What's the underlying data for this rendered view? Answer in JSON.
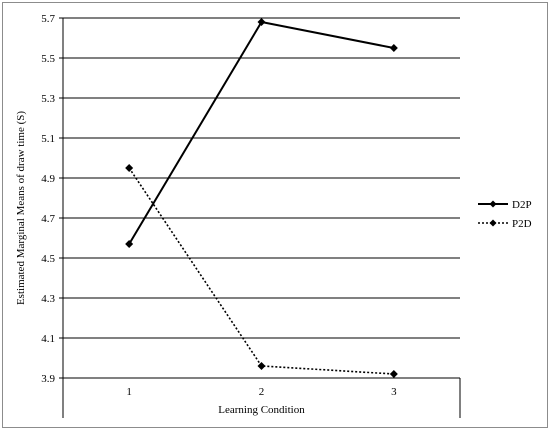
{
  "chart_data": {
    "type": "line",
    "title": "",
    "xlabel": "Learning Condition",
    "ylabel": "Estimated Marginal Means of draw time (S)",
    "categories": [
      "1",
      "2",
      "3"
    ],
    "ylim": [
      3.9,
      5.7
    ],
    "yticks": [
      "3.9",
      "4.1",
      "4.3",
      "4.5",
      "4.7",
      "4.9",
      "5.1",
      "5.3",
      "5.5",
      "5.7"
    ],
    "grid": "horizontal",
    "legend_position": "right",
    "series": [
      {
        "name": "D2P",
        "values": [
          4.57,
          5.68,
          5.55
        ],
        "line_style": "solid",
        "marker": "diamond",
        "color": "#000000"
      },
      {
        "name": "P2D",
        "values": [
          4.95,
          3.96,
          3.92
        ],
        "line_style": "dotted",
        "marker": "diamond",
        "color": "#000000"
      }
    ]
  }
}
